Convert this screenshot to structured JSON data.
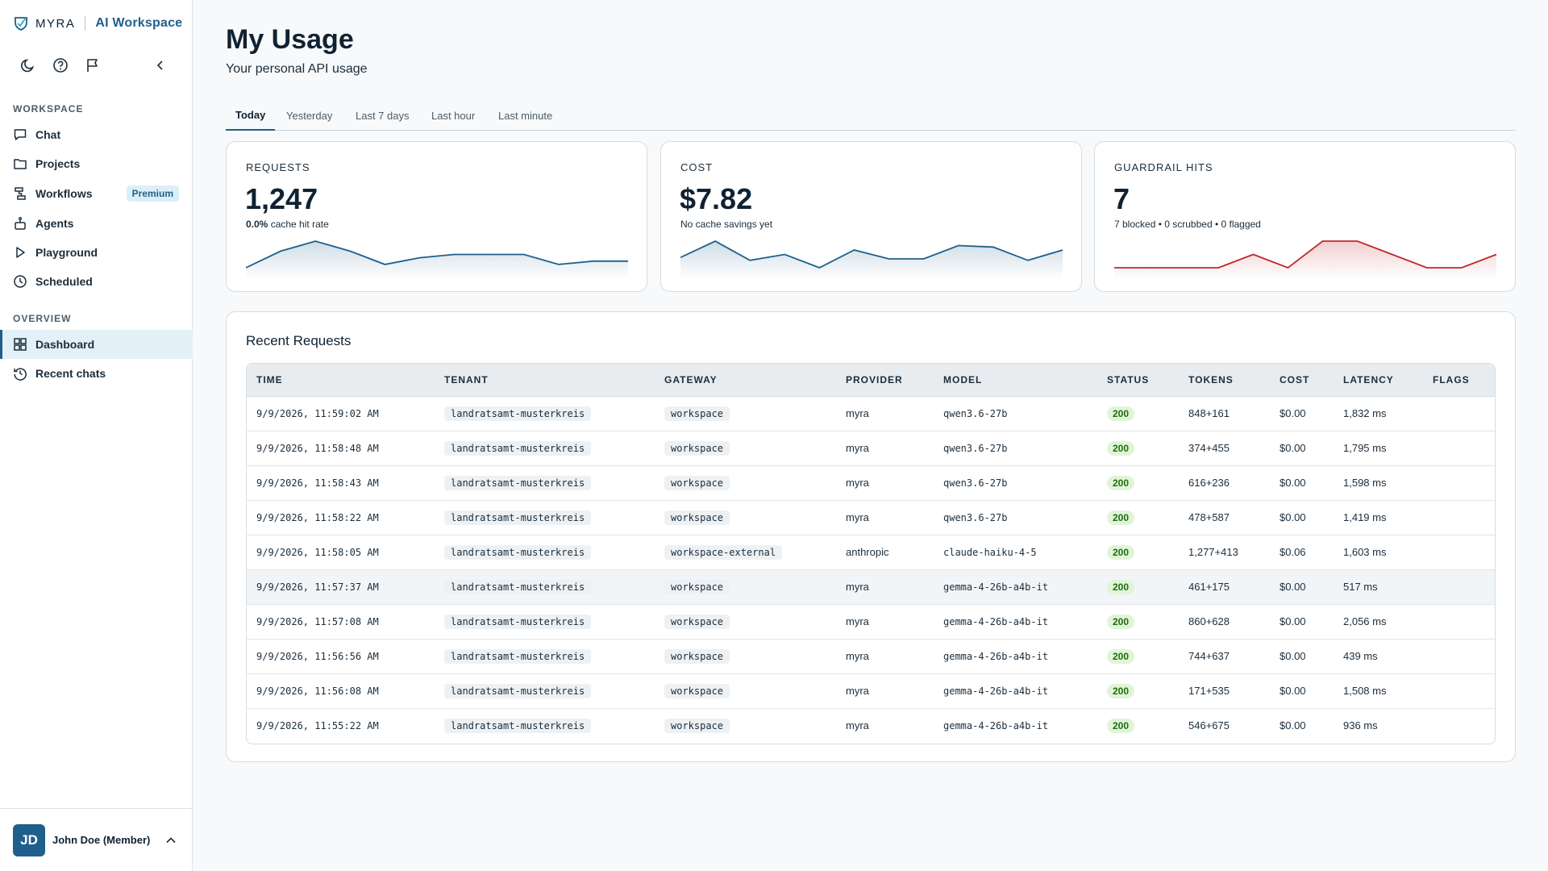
{
  "brand": {
    "name": "MYRA",
    "product": "AI Workspace"
  },
  "toolbar": {
    "icons": [
      "moon-icon",
      "help-circle-icon",
      "flag-icon",
      "chevron-left-icon"
    ]
  },
  "sidebar": {
    "workspace_label": "WORKSPACE",
    "workspace_items": [
      {
        "label": "Chat",
        "icon": "chat-icon"
      },
      {
        "label": "Projects",
        "icon": "folder-icon"
      },
      {
        "label": "Workflows",
        "icon": "workflow-icon",
        "badge": "Premium"
      },
      {
        "label": "Agents",
        "icon": "agent-icon"
      },
      {
        "label": "Playground",
        "icon": "play-icon"
      },
      {
        "label": "Scheduled",
        "icon": "clock-icon"
      }
    ],
    "overview_label": "OVERVIEW",
    "overview_items": [
      {
        "label": "Dashboard",
        "icon": "grid-icon",
        "active": true
      },
      {
        "label": "Recent chats",
        "icon": "history-icon"
      }
    ],
    "user": {
      "initials": "JD",
      "name": "John Doe (Member)"
    }
  },
  "page": {
    "title": "My Usage",
    "subtitle": "Your personal API usage"
  },
  "tabs": [
    {
      "label": "Today",
      "active": true
    },
    {
      "label": "Yesterday"
    },
    {
      "label": "Last 7 days"
    },
    {
      "label": "Last hour"
    },
    {
      "label": "Last minute"
    }
  ],
  "cards": {
    "requests": {
      "label": "REQUESTS",
      "value": "1,247",
      "note_bold": "0.0%",
      "note_rest": "cache hit rate",
      "color": "#1f5f8b",
      "trend": [
        52,
        57,
        60,
        57,
        53,
        55,
        56,
        56,
        56,
        53,
        54,
        54
      ]
    },
    "cost": {
      "label": "COST",
      "value": "$7.82",
      "note_rest": "No cache savings yet",
      "color": "#1f5f8b",
      "trend": [
        48,
        59,
        46,
        50,
        41,
        53,
        47,
        47,
        56,
        55,
        46,
        53
      ]
    },
    "guardrail": {
      "label": "GUARDRAIL HITS",
      "value": "7",
      "note_rest": "7 blocked • 0 scrubbed • 0 flagged",
      "color": "#c0272d",
      "trend": [
        0,
        0,
        0,
        0,
        1,
        0,
        2,
        2,
        1,
        0,
        0,
        1
      ]
    }
  },
  "recent": {
    "title": "Recent Requests",
    "columns": [
      "TIME",
      "TENANT",
      "GATEWAY",
      "PROVIDER",
      "MODEL",
      "STATUS",
      "TOKENS",
      "COST",
      "LATENCY",
      "FLAGS"
    ],
    "rows": [
      {
        "time": "9/9/2026, 11:59:02 AM",
        "tenant": "landratsamt-musterkreis",
        "gateway": "workspace",
        "provider": "myra",
        "model": "qwen3.6-27b",
        "status": "200",
        "tokens": "848+161",
        "cost": "$0.00",
        "latency": "1,832 ms",
        "flags": ""
      },
      {
        "time": "9/9/2026, 11:58:48 AM",
        "tenant": "landratsamt-musterkreis",
        "gateway": "workspace",
        "provider": "myra",
        "model": "qwen3.6-27b",
        "status": "200",
        "tokens": "374+455",
        "cost": "$0.00",
        "latency": "1,795 ms",
        "flags": ""
      },
      {
        "time": "9/9/2026, 11:58:43 AM",
        "tenant": "landratsamt-musterkreis",
        "gateway": "workspace",
        "provider": "myra",
        "model": "qwen3.6-27b",
        "status": "200",
        "tokens": "616+236",
        "cost": "$0.00",
        "latency": "1,598 ms",
        "flags": ""
      },
      {
        "time": "9/9/2026, 11:58:22 AM",
        "tenant": "landratsamt-musterkreis",
        "gateway": "workspace",
        "provider": "myra",
        "model": "qwen3.6-27b",
        "status": "200",
        "tokens": "478+587",
        "cost": "$0.00",
        "latency": "1,419 ms",
        "flags": ""
      },
      {
        "time": "9/9/2026, 11:58:05 AM",
        "tenant": "landratsamt-musterkreis",
        "gateway": "workspace-external",
        "provider": "anthropic",
        "model": "claude-haiku-4-5",
        "status": "200",
        "tokens": "1,277+413",
        "cost": "$0.06",
        "latency": "1,603 ms",
        "flags": ""
      },
      {
        "time": "9/9/2026, 11:57:37 AM",
        "tenant": "landratsamt-musterkreis",
        "gateway": "workspace",
        "provider": "myra",
        "model": "gemma-4-26b-a4b-it",
        "status": "200",
        "tokens": "461+175",
        "cost": "$0.00",
        "latency": "517 ms",
        "flags": ""
      },
      {
        "time": "9/9/2026, 11:57:08 AM",
        "tenant": "landratsamt-musterkreis",
        "gateway": "workspace",
        "provider": "myra",
        "model": "gemma-4-26b-a4b-it",
        "status": "200",
        "tokens": "860+628",
        "cost": "$0.00",
        "latency": "2,056 ms",
        "flags": ""
      },
      {
        "time": "9/9/2026, 11:56:56 AM",
        "tenant": "landratsamt-musterkreis",
        "gateway": "workspace",
        "provider": "myra",
        "model": "gemma-4-26b-a4b-it",
        "status": "200",
        "tokens": "744+637",
        "cost": "$0.00",
        "latency": "439 ms",
        "flags": ""
      },
      {
        "time": "9/9/2026, 11:56:08 AM",
        "tenant": "landratsamt-musterkreis",
        "gateway": "workspace",
        "provider": "myra",
        "model": "gemma-4-26b-a4b-it",
        "status": "200",
        "tokens": "171+535",
        "cost": "$0.00",
        "latency": "1,508 ms",
        "flags": ""
      },
      {
        "time": "9/9/2026, 11:55:22 AM",
        "tenant": "landratsamt-musterkreis",
        "gateway": "workspace",
        "provider": "myra",
        "model": "gemma-4-26b-a4b-it",
        "status": "200",
        "tokens": "546+675",
        "cost": "$0.00",
        "latency": "936 ms",
        "flags": ""
      }
    ]
  }
}
